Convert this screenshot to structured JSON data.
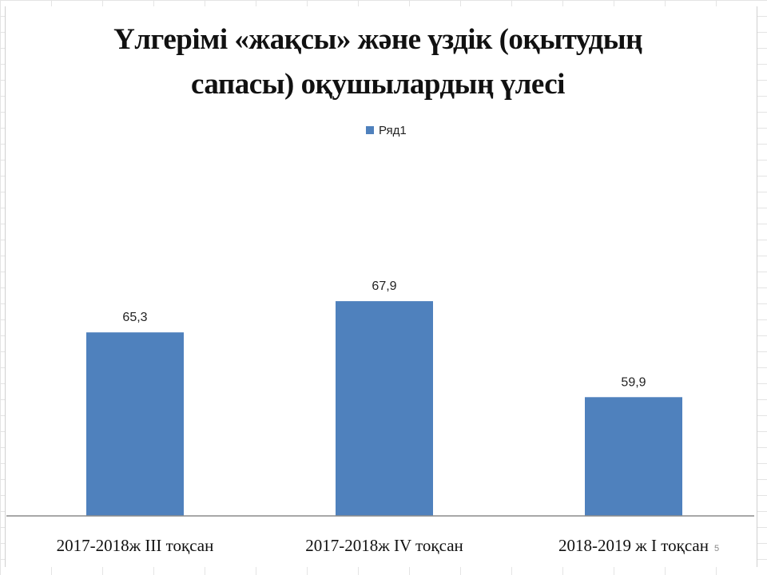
{
  "slide": {
    "number": "5"
  },
  "colors": {
    "bar": "#4f81bd",
    "axis": "#8c8c8c",
    "text": "#222222"
  },
  "chart_data": {
    "type": "bar",
    "title": "Үлгерімі «жақсы» және үздік  (оқытудың сапасы) оқушылардың  үлесі",
    "title_lines": [
      "Үлгерімі «жақсы» және үздік  (оқытудың",
      "сапасы) оқушылардың  үлесі"
    ],
    "categories": [
      "2017-2018ж III тоқсан",
      "2017-2018ж IV тоқсан",
      "2018-2019 ж  I тоқсан"
    ],
    "series": [
      {
        "name": "Ряд1",
        "values": [
          65.3,
          67.9,
          59.9
        ],
        "labels": [
          "65,3",
          "67,9",
          "59,9"
        ]
      }
    ],
    "xlabel": "",
    "ylabel": "",
    "ylim": [
      50,
      70
    ],
    "grid": false,
    "legend_position": "top"
  }
}
